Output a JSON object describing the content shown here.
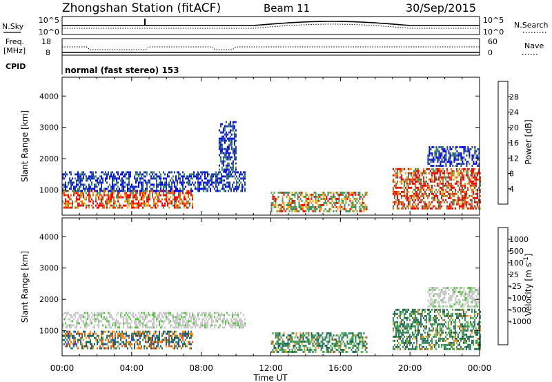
{
  "header": {
    "station_title": "Zhongshan Station (fitACF)",
    "beam": "Beam 11",
    "date": "30/Sep/2015"
  },
  "top_panels": {
    "nsky_label": "N.Sky",
    "nsky_ticks": [
      "10^5",
      "10^0"
    ],
    "nsearch_label": "N.Search",
    "nsearch_ticks": [
      "10^5",
      "10^0"
    ],
    "freq_label_line1": "Freq.",
    "freq_label_line2": "[MHz]",
    "freq_ticks": [
      "18",
      "8"
    ],
    "nave_label": "Nave",
    "nave_ticks": [
      "60",
      "0"
    ],
    "cpid_label": "CPID",
    "cpid_value": "normal (fast stereo) 153"
  },
  "chart_data": [
    {
      "type": "heatmap",
      "panel": "power",
      "xlabel": "Time UT",
      "ylabel": "Slant Range [km]",
      "x_ticks": [
        "00:00",
        "04:00",
        "08:00",
        "12:00",
        "16:00",
        "20:00",
        "00:00"
      ],
      "x_range_hours": [
        0,
        24
      ],
      "y_ticks": [
        1000,
        2000,
        3000,
        4000
      ],
      "ylim": [
        200,
        4600
      ],
      "colorbar": {
        "label": "Power [dB]",
        "ticks": [
          "28",
          "24",
          "20",
          "16",
          "12",
          "8",
          "4"
        ],
        "colors": [
          "#0000ff",
          "#1e3caa",
          "#3c8c64",
          "#64a050",
          "#c8c80a",
          "#ffa000",
          "#ff5a00",
          "#ff0000"
        ]
      },
      "echo_regions": [
        {
          "t_start": 0.0,
          "t_end": 7.5,
          "r_min": 450,
          "r_max": 1000,
          "value": "high"
        },
        {
          "t_start": 0.0,
          "t_end": 10.5,
          "r_min": 1000,
          "r_max": 1600,
          "value": "low"
        },
        {
          "t_start": 9.0,
          "t_end": 10.0,
          "r_min": 1600,
          "r_max": 3200,
          "value": "low"
        },
        {
          "t_start": 12.0,
          "t_end": 17.5,
          "r_min": 350,
          "r_max": 950,
          "value": "medium"
        },
        {
          "t_start": 19.0,
          "t_end": 24.0,
          "r_min": 400,
          "r_max": 1700,
          "value": "high"
        },
        {
          "t_start": 21.0,
          "t_end": 24.0,
          "r_min": 1800,
          "r_max": 2400,
          "value": "low"
        }
      ]
    },
    {
      "type": "heatmap",
      "panel": "velocity",
      "xlabel": "Time UT",
      "ylabel": "Slant Range [km]",
      "x_ticks": [
        "00:00",
        "04:00",
        "08:00",
        "12:00",
        "16:00",
        "20:00",
        "00:00"
      ],
      "x_range_hours": [
        0,
        24
      ],
      "y_ticks": [
        1000,
        2000,
        3000,
        4000
      ],
      "ylim": [
        200,
        4600
      ],
      "colorbar": {
        "label": "Velocity [m s^-1]",
        "ticks": [
          "1000",
          "500",
          "100",
          "25",
          "-25",
          "-100",
          "-500",
          "-1000"
        ],
        "colors": [
          "#ff0000",
          "#ff5a00",
          "#ff8c14",
          "#ffaa3c",
          "#c8c8c8",
          "#c8c8c8",
          "#50c83c",
          "#3c8c64",
          "#1e6450",
          "#2850b4"
        ]
      },
      "echo_regions": [
        {
          "t_start": 0.0,
          "t_end": 7.5,
          "r_min": 450,
          "r_max": 1000,
          "value": "mixed"
        },
        {
          "t_start": 0.0,
          "t_end": 10.5,
          "r_min": 1100,
          "r_max": 1600,
          "value": "near-zero"
        },
        {
          "t_start": 12.0,
          "t_end": 17.5,
          "r_min": 350,
          "r_max": 950,
          "value": "positive"
        },
        {
          "t_start": 19.0,
          "t_end": 24.0,
          "r_min": 400,
          "r_max": 1700,
          "value": "positive"
        },
        {
          "t_start": 21.0,
          "t_end": 24.0,
          "r_min": 1800,
          "r_max": 2400,
          "value": "near-zero"
        }
      ]
    }
  ],
  "colors": {
    "power_high": "#ff0000",
    "power_low": "#1e3caa",
    "velocity_ground": "#c8c8c8"
  }
}
